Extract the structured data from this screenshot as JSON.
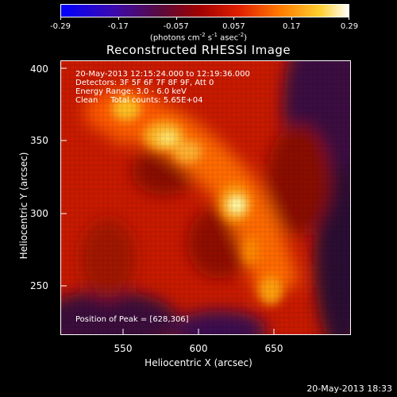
{
  "colorbar": {
    "ticks": [
      "-0.29",
      "-0.17",
      "-0.057",
      "0.057",
      "0.17",
      "0.29"
    ],
    "units_pre": "(photons cm",
    "units_sup1": "-2",
    "units_mid1": " s",
    "units_sup2": "-1",
    "units_mid2": " asec",
    "units_sup3": "-2",
    "units_post": ")"
  },
  "title": "Reconstructed RHESSI Image",
  "info": {
    "line1": "20-May-2013 12:15:24.000 to 12:19:36.000",
    "line2": "Detectors: 3F 5F 6F 7F 8F 9F, Att 0",
    "line3": "Energy Range: 3.0 - 6.0 keV",
    "line4": "Clean     Total counts: 5.65E+04"
  },
  "peak_text": "Position of Peak = [628,306]",
  "axes": {
    "xlabel": "Heliocentric X (arcsec)",
    "ylabel": "Heliocentric Y (arcsec)",
    "xticks": [
      "550",
      "600",
      "650"
    ],
    "yticks": [
      "400",
      "350",
      "300",
      "250"
    ]
  },
  "timestamp": "20-May-2013 18:33",
  "image": {
    "peak_xy": [
      628,
      306
    ],
    "colormap": "blue-purple-red-orange-yellow-white"
  }
}
